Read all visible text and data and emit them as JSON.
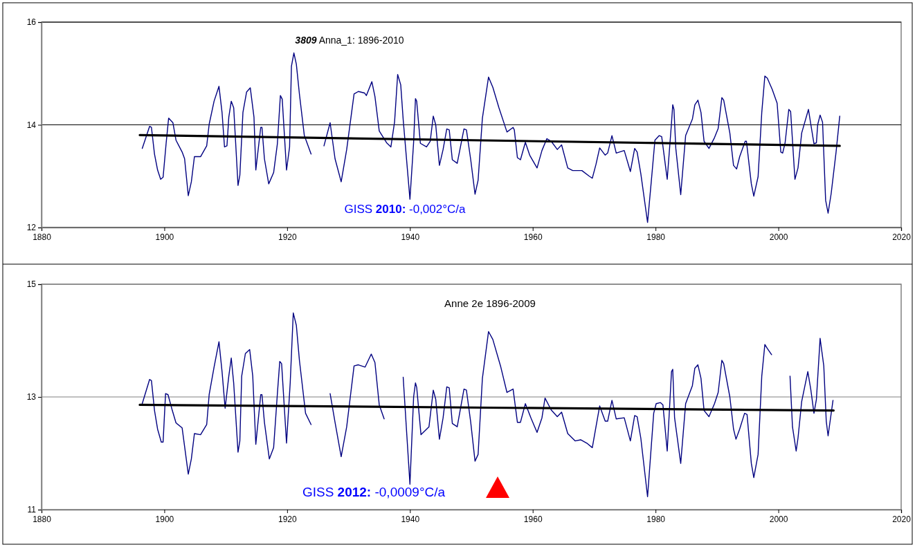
{
  "chart_data": [
    {
      "type": "line",
      "title": "3809 Anna_1: 1896-2010",
      "xlim": [
        1880,
        2020
      ],
      "xticks": [
        1880,
        1900,
        1920,
        1940,
        1960,
        1980,
        2000,
        2020
      ],
      "ylim": [
        12,
        16
      ],
      "yticks": [
        12,
        14,
        16
      ],
      "grid": "y",
      "annotations": [
        "GISS 2010: -0,002°C/a"
      ],
      "series": [
        {
          "color": "#000080",
          "x": [
            1896.4,
            1897.6,
            1897.9,
            1898.4,
            1898.9,
            1899.4,
            1899.8,
            1900.3,
            1900.7,
            1901.4,
            1901.9,
            1902.9,
            1903.3,
            1903.9,
            1904.4,
            1904.9,
            1905.9,
            1906.9,
            1907.3,
            1908.1,
            1908.9,
            1909.4,
            1909.8,
            1910.2,
            1910.5,
            1910.9,
            1911.3,
            1912.0,
            1912.3,
            1912.8,
            1913.4,
            1914.0,
            1914.6,
            1914.9,
            1915.7,
            1915.9,
            1916.3,
            1917.0,
            1917.8,
            1918.4,
            1918.9,
            1919.2,
            1919.9,
            1920.4,
            1920.7,
            1921.1,
            1921.5,
            1922.0,
            1922.8,
            1923.9,
            1925.0,
            1926.0,
            1927.0,
            1927.8,
            1928.8,
            1929.7,
            1930.9,
            1931.6,
            1932.6,
            1932.9,
            1933.8,
            1934.3,
            1935.0,
            1936.2,
            1936.9,
            1937.5,
            1938.0,
            1938.5,
            1938.9,
            1940.0,
            1940.6,
            1940.9,
            1941.1,
            1941.7,
            1942.7,
            1943.3,
            1943.8,
            1944.2,
            1944.8,
            1945.4,
            1946.0,
            1946.4,
            1946.9,
            1947.7,
            1948.8,
            1949.2,
            1949.9,
            1950.6,
            1951.1,
            1951.8,
            1952.8,
            1953.5,
            1954.5,
            1955.8,
            1956.8,
            1957.0,
            1957.5,
            1958.0,
            1958.8,
            1959.5,
            1960.7,
            1961.5,
            1962.3,
            1963.0,
            1964.0,
            1964.7,
            1965.7,
            1966.5,
            1968.0,
            1969.2,
            1969.7,
            1970.3,
            1970.9,
            1971.8,
            1972.2,
            1972.9,
            1973.6,
            1974.9,
            1975.9,
            1976.6,
            1977.0,
            1977.6,
            1978.7,
            1979.3,
            1979.9,
            1980.6,
            1981.0,
            1981.9,
            1982.6,
            1982.8,
            1983.0,
            1983.3,
            1984.1,
            1984.9,
            1986.0,
            1986.4,
            1986.9,
            1987.4,
            1987.9,
            1988.7,
            1989.6,
            1990.2,
            1990.8,
            1991.1,
            1992.1,
            1992.7,
            1993.2,
            1993.7,
            1994.6,
            1994.8,
            1995.6,
            1996.0,
            1996.7,
            1997.3,
            1997.8,
            1998.2,
            1999.0,
            1999.8,
            2000.4,
            2000.7,
            2001.1,
            2001.7,
            2002.0,
            2002.7,
            2003.2,
            2003.8,
            2004.9,
            2005.3,
            2005.8,
            2006.2,
            2006.4,
            2006.8,
            2007.2,
            2007.7,
            2008.1,
            2008.6,
            2009.4,
            2010.0
          ],
          "values": [
            13.54,
            13.97,
            13.95,
            13.43,
            13.12,
            12.94,
            12.98,
            13.65,
            14.13,
            14.04,
            13.7,
            13.47,
            13.34,
            12.62,
            12.89,
            13.38,
            13.38,
            13.59,
            14.01,
            14.46,
            14.75,
            14.24,
            13.57,
            13.59,
            14.15,
            14.46,
            14.33,
            12.82,
            13.02,
            14.24,
            14.64,
            14.72,
            14.15,
            13.12,
            13.95,
            13.95,
            13.34,
            12.85,
            13.07,
            13.62,
            14.57,
            14.5,
            13.12,
            13.57,
            15.14,
            15.4,
            15.18,
            14.6,
            13.79,
            13.43,
            null,
            13.59,
            14.04,
            13.34,
            12.89,
            13.52,
            14.6,
            14.65,
            14.62,
            14.57,
            14.84,
            14.55,
            13.88,
            13.65,
            13.57,
            14.06,
            14.98,
            14.78,
            14.1,
            12.55,
            13.66,
            14.51,
            14.46,
            13.64,
            13.57,
            13.68,
            14.17,
            14.0,
            13.21,
            13.52,
            13.92,
            13.9,
            13.32,
            13.25,
            13.92,
            13.9,
            13.32,
            12.65,
            12.92,
            14.13,
            14.93,
            14.73,
            14.33,
            13.86,
            13.95,
            13.9,
            13.36,
            13.32,
            13.66,
            13.41,
            13.16,
            13.5,
            13.73,
            13.68,
            13.52,
            13.61,
            13.16,
            13.11,
            13.11,
            13.0,
            12.96,
            13.23,
            13.55,
            13.41,
            13.45,
            13.79,
            13.45,
            13.5,
            13.09,
            13.54,
            13.47,
            13.05,
            12.1,
            12.89,
            13.7,
            13.79,
            13.77,
            12.94,
            14.04,
            14.39,
            14.3,
            13.54,
            12.64,
            13.79,
            14.11,
            14.39,
            14.48,
            14.24,
            13.68,
            13.54,
            13.75,
            13.93,
            14.53,
            14.48,
            13.84,
            13.21,
            13.14,
            13.38,
            13.68,
            13.68,
            12.85,
            12.61,
            12.99,
            14.24,
            14.95,
            14.91,
            14.69,
            14.42,
            13.47,
            13.45,
            13.65,
            14.3,
            14.26,
            12.94,
            13.16,
            13.84,
            14.3,
            14.0,
            13.63,
            13.65,
            14.0,
            14.19,
            14.05,
            12.53,
            12.28,
            12.66,
            13.47,
            14.17
          ]
        },
        {
          "color": "#000000",
          "x": [
            1896,
            2010
          ],
          "values": [
            13.8,
            13.59
          ]
        }
      ]
    },
    {
      "type": "line",
      "title": "Anne 2e 1896-2009",
      "xlim": [
        1880,
        2020
      ],
      "xticks": [
        1880,
        1900,
        1920,
        1940,
        1960,
        1980,
        2000,
        2020
      ],
      "ylim": [
        11,
        15
      ],
      "yticks": [
        11,
        13,
        15
      ],
      "grid": "y",
      "annotations": [
        "GISS 2012: -0,0009°C/a"
      ],
      "series": [
        {
          "color": "#000080",
          "x": [
            1896.4,
            1897.6,
            1897.9,
            1898.4,
            1898.9,
            1899.5,
            1899.8,
            1900.0,
            1900.2,
            1900.6,
            1901.3,
            1901.9,
            1902.9,
            1903.9,
            1904.4,
            1904.9,
            1905.9,
            1906.9,
            1907.3,
            1908.1,
            1908.9,
            1909.4,
            1909.9,
            1910.5,
            1910.9,
            1911.3,
            1912.0,
            1912.3,
            1912.6,
            1913.2,
            1913.9,
            1914.4,
            1914.9,
            1915.7,
            1915.9,
            1916.3,
            1917.1,
            1917.8,
            1918.4,
            1918.8,
            1919.1,
            1919.9,
            1920.5,
            1921.0,
            1921.5,
            1922.0,
            1923.0,
            1923.9,
            1925.0,
            1927.0,
            1927.8,
            1928.8,
            1929.7,
            1930.9,
            1931.6,
            1932.7,
            1933.7,
            1934.3,
            1935.0,
            1935.8,
            1937.0,
            1938.9,
            1939.5,
            1940.0,
            1940.6,
            1940.9,
            1941.1,
            1941.8,
            1943.1,
            1943.8,
            1944.2,
            1944.8,
            1945.4,
            1946.0,
            1946.4,
            1946.9,
            1947.7,
            1948.8,
            1949.2,
            1949.9,
            1950.6,
            1951.1,
            1951.8,
            1952.8,
            1953.5,
            1954.8,
            1955.8,
            1956.8,
            1957.5,
            1958.0,
            1958.8,
            1959.7,
            1960.7,
            1961.5,
            1962.0,
            1963.0,
            1964.0,
            1964.7,
            1965.7,
            1966.9,
            1967.8,
            1968.8,
            1969.7,
            1970.3,
            1970.9,
            1971.8,
            1972.2,
            1972.9,
            1973.6,
            1974.9,
            1975.9,
            1976.6,
            1977.0,
            1977.6,
            1978.7,
            1979.7,
            1980.1,
            1980.8,
            1981.2,
            1981.9,
            1982.6,
            1982.8,
            1983.1,
            1984.1,
            1984.9,
            1986.0,
            1986.4,
            1986.9,
            1987.4,
            1987.9,
            1988.7,
            1989.6,
            1990.2,
            1990.8,
            1991.1,
            1992.1,
            1992.7,
            1993.1,
            1993.7,
            1994.5,
            1994.9,
            1995.6,
            1996.0,
            1996.7,
            1997.3,
            1997.8,
            1998.2,
            1998.9,
            2000.4,
            2001.9,
            2002.3,
            2002.9,
            2003.2,
            2003.8,
            2004.8,
            2005.3,
            2005.8,
            2006.2,
            2006.8,
            2007.4,
            2007.8,
            2008.1,
            2008.9
          ],
          "values": [
            12.88,
            13.31,
            13.29,
            12.76,
            12.43,
            12.2,
            12.2,
            12.63,
            13.06,
            13.04,
            12.76,
            12.54,
            12.45,
            11.63,
            11.9,
            12.35,
            12.33,
            12.51,
            13.04,
            13.53,
            13.98,
            13.45,
            12.8,
            13.37,
            13.69,
            13.24,
            12.02,
            12.22,
            13.37,
            13.77,
            13.84,
            13.37,
            12.16,
            13.04,
            13.04,
            12.55,
            11.9,
            12.1,
            13.04,
            13.63,
            13.59,
            12.18,
            13.25,
            14.49,
            14.27,
            13.65,
            12.71,
            12.51,
            null,
            13.06,
            12.55,
            11.94,
            12.47,
            13.55,
            13.57,
            13.53,
            13.76,
            13.61,
            12.86,
            12.61,
            null,
            13.35,
            12.31,
            11.45,
            13.0,
            13.25,
            13.17,
            12.33,
            12.47,
            13.12,
            12.96,
            12.25,
            12.63,
            13.18,
            13.16,
            12.53,
            12.47,
            13.14,
            13.12,
            12.55,
            11.86,
            11.98,
            13.33,
            14.16,
            14.02,
            13.53,
            13.08,
            13.14,
            12.55,
            12.55,
            12.88,
            12.63,
            12.37,
            12.63,
            12.98,
            12.77,
            12.65,
            12.73,
            12.35,
            12.22,
            12.24,
            12.18,
            12.1,
            12.47,
            12.84,
            12.57,
            12.57,
            12.94,
            12.61,
            12.63,
            12.22,
            12.67,
            12.65,
            12.27,
            11.23,
            12.71,
            12.88,
            12.9,
            12.86,
            12.04,
            13.45,
            13.49,
            12.63,
            11.82,
            12.88,
            13.2,
            13.51,
            13.57,
            13.33,
            12.76,
            12.65,
            12.88,
            13.08,
            13.65,
            13.59,
            13.0,
            12.43,
            12.25,
            12.43,
            12.71,
            12.69,
            11.82,
            11.57,
            11.98,
            13.37,
            13.93,
            13.86,
            13.75,
            null,
            13.37,
            12.47,
            12.04,
            12.27,
            12.92,
            13.45,
            13.12,
            12.71,
            12.96,
            14.04,
            13.55,
            12.57,
            12.31,
            12.94
          ]
        },
        {
          "color": "#000000",
          "x": [
            1896,
            2009
          ],
          "values": [
            12.86,
            12.76
          ]
        }
      ]
    }
  ]
}
